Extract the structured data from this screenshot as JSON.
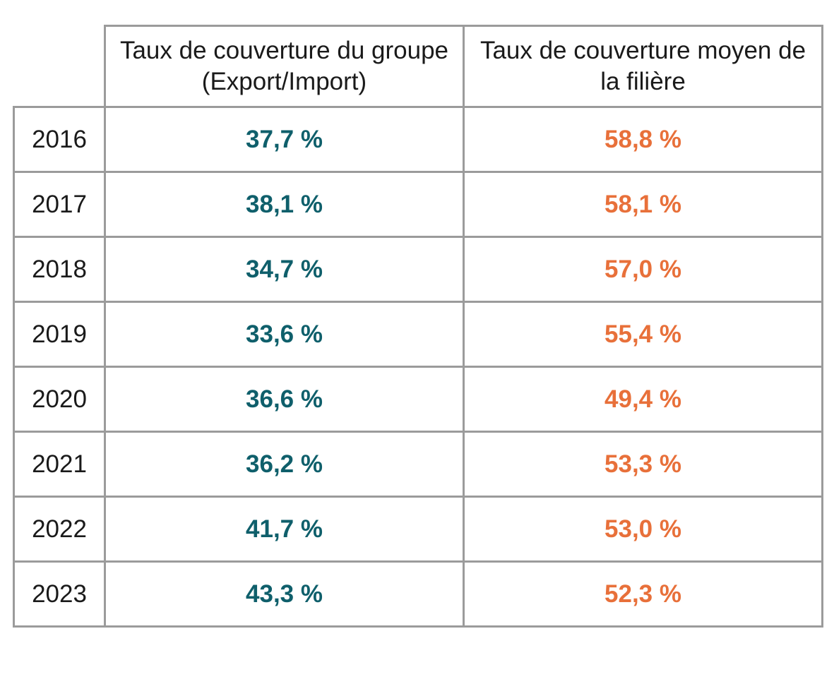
{
  "table": {
    "headers": [
      "",
      "Taux de couverture du groupe (Export/Import)",
      "Taux de couverture moyen de la filière"
    ]
  },
  "chart_data": {
    "type": "table",
    "columns": [
      "Taux de couverture du groupe (Export/Import)",
      "Taux de couverture moyen de la filière"
    ],
    "rows": [
      {
        "year": "2016",
        "groupe": "37,7 %",
        "filiere": "58,8 %"
      },
      {
        "year": "2017",
        "groupe": "38,1 %",
        "filiere": "58,1 %"
      },
      {
        "year": "2018",
        "groupe": "34,7 %",
        "filiere": "57,0 %"
      },
      {
        "year": "2019",
        "groupe": "33,6 %",
        "filiere": "55,4 %"
      },
      {
        "year": "2020",
        "groupe": "36,6 %",
        "filiere": "49,4 %"
      },
      {
        "year": "2021",
        "groupe": "36,2 %",
        "filiere": "53,3 %"
      },
      {
        "year": "2022",
        "groupe": "41,7 %",
        "filiere": "53,0 %"
      },
      {
        "year": "2023",
        "groupe": "43,3 %",
        "filiere": "52,3 %"
      }
    ]
  },
  "colors": {
    "groupe": "#0f5f6b",
    "filiere": "#e8703a",
    "border": "#9b9b9b"
  }
}
